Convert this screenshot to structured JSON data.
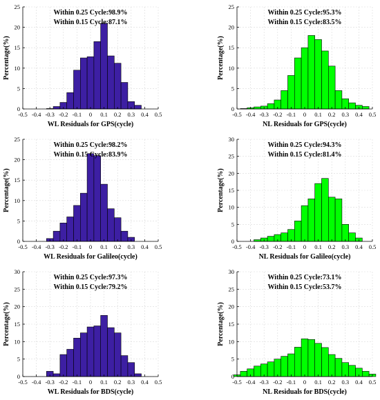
{
  "chart_data": [
    {
      "type": "bar",
      "x": [
        -0.4,
        -0.35,
        -0.3,
        -0.25,
        -0.2,
        -0.15,
        -0.1,
        -0.05,
        0.0,
        0.05,
        0.1,
        0.15,
        0.2,
        0.25,
        0.3,
        0.35,
        0.4
      ],
      "values": [
        0,
        0,
        0.1,
        0.6,
        1.6,
        4.0,
        9.5,
        12.5,
        12.8,
        16.5,
        21.0,
        13.0,
        11.2,
        6.5,
        1.8,
        0.9,
        0
      ],
      "color": "#3d1fa3",
      "xlabel": "WL Residuals for GPS(cycle)",
      "ylabel": "Percentage(%)",
      "annotations": [
        "Within 0.25 Cycle:98.9%",
        "Within 0.15 Cycle:87.1%"
      ],
      "xlim": [
        -0.5,
        0.5
      ],
      "ylim": [
        0,
        25
      ],
      "xticks": [
        "-0.5",
        "-0.4",
        "-0.3",
        "-0.2",
        "-0.1",
        "0",
        "0.1",
        "0.2",
        "0.3",
        "0.4",
        "0.5"
      ],
      "yticks": [
        "0",
        "5",
        "10",
        "15",
        "20",
        "25"
      ],
      "grid": true
    },
    {
      "type": "bar",
      "x": [
        -0.45,
        -0.4,
        -0.35,
        -0.3,
        -0.25,
        -0.2,
        -0.15,
        -0.1,
        -0.05,
        0.0,
        0.05,
        0.1,
        0.15,
        0.2,
        0.25,
        0.3,
        0.35,
        0.4,
        0.45
      ],
      "values": [
        0.1,
        0.3,
        0.5,
        0.7,
        1.3,
        2.2,
        4.5,
        8.2,
        12.5,
        15.0,
        18.0,
        17.0,
        14.2,
        10.5,
        4.5,
        2.5,
        1.5,
        0.9,
        0.6
      ],
      "color": "#00ff00",
      "xlabel": "NL Residuals for GPS(cycle)",
      "ylabel": "Percentage(%)",
      "annotations": [
        "Within 0.25 Cycle:95.3%",
        "Within 0.15 Cycle:83.5%"
      ],
      "xlim": [
        -0.5,
        0.5
      ],
      "ylim": [
        0,
        25
      ],
      "xticks": [
        "-0.5",
        "-0.4",
        "-0.3",
        "-0.2",
        "-0.1",
        "0",
        "0.1",
        "0.2",
        "0.3",
        "0.4",
        "0.5"
      ],
      "yticks": [
        "0",
        "5",
        "10",
        "15",
        "20",
        "25"
      ],
      "grid": true
    },
    {
      "type": "bar",
      "x": [
        -0.35,
        -0.3,
        -0.25,
        -0.2,
        -0.15,
        -0.1,
        -0.05,
        0.0,
        0.05,
        0.1,
        0.15,
        0.2,
        0.25,
        0.3,
        0.35
      ],
      "values": [
        0,
        0.7,
        2.5,
        4.5,
        6.0,
        8.8,
        11.8,
        21.5,
        21.0,
        14.0,
        8.0,
        5.8,
        2.5,
        1.0,
        0
      ],
      "color": "#3d1fa3",
      "xlabel": "WL Residuals for Galileo(cycle)",
      "ylabel": "Percentage(%)",
      "annotations": [
        "Within 0.25 Cycle:98.2%",
        "Within 0.15 Cycle:83.9%"
      ],
      "xlim": [
        -0.5,
        0.5
      ],
      "ylim": [
        0,
        25
      ],
      "xticks": [
        "-0.5",
        "-0.4",
        "-0.3",
        "-0.2",
        "-0.1",
        "0",
        "0.1",
        "0.2",
        "0.3",
        "0.4",
        "0.5"
      ],
      "yticks": [
        "0",
        "5",
        "10",
        "15",
        "20",
        "25"
      ],
      "grid": true
    },
    {
      "type": "bar",
      "x": [
        -0.4,
        -0.35,
        -0.3,
        -0.25,
        -0.2,
        -0.15,
        -0.1,
        -0.05,
        0.0,
        0.05,
        0.1,
        0.15,
        0.2,
        0.25,
        0.3,
        0.35,
        0.4
      ],
      "values": [
        0,
        0.5,
        1.0,
        1.5,
        2.0,
        2.5,
        3.5,
        6.0,
        10.5,
        12.5,
        17.0,
        18.5,
        13.0,
        12.5,
        5.0,
        2.5,
        1.0
      ],
      "color": "#00ff00",
      "xlabel": "NL Residuals for Galileo(cycle)",
      "ylabel": "Percentage(%)",
      "annotations": [
        "Within 0.25 Cycle:94.3%",
        "Within 0.15 Cycle:81.4%"
      ],
      "xlim": [
        -0.5,
        0.5
      ],
      "ylim": [
        0,
        30
      ],
      "xticks": [
        "-0.5",
        "-0.4",
        "-0.3",
        "-0.2",
        "-0.1",
        "0",
        "0.1",
        "0.2",
        "0.3",
        "0.4",
        "0.5"
      ],
      "yticks": [
        "0",
        "5",
        "10",
        "15",
        "20",
        "25",
        "30"
      ],
      "grid": true
    },
    {
      "type": "bar",
      "x": [
        -0.35,
        -0.3,
        -0.25,
        -0.2,
        -0.15,
        -0.1,
        -0.05,
        0.0,
        0.05,
        0.1,
        0.15,
        0.2,
        0.25,
        0.3,
        0.35,
        0.4
      ],
      "values": [
        0,
        1.5,
        0.8,
        6.3,
        7.8,
        11.0,
        12.5,
        14.2,
        14.5,
        17.5,
        14.0,
        12.5,
        6.0,
        4.0,
        0.8,
        0
      ],
      "color": "#3d1fa3",
      "xlabel": "WL Residuals for BDS(cycle)",
      "ylabel": "Percentage(%)",
      "annotations": [
        "Within 0.25 Cycle:97.3%",
        "Within 0.15 Cycle:79.2%"
      ],
      "xlim": [
        -0.5,
        0.5
      ],
      "ylim": [
        0,
        30
      ],
      "xticks": [
        "-0.5",
        "-0.4",
        "-0.3",
        "-0.2",
        "-0.1",
        "0",
        "0.1",
        "0.2",
        "0.3",
        "0.4",
        "0.5"
      ],
      "yticks": [
        "0",
        "5",
        "10",
        "15",
        "20",
        "25",
        "30"
      ],
      "grid": true
    },
    {
      "type": "bar",
      "x": [
        -0.5,
        -0.45,
        -0.4,
        -0.35,
        -0.3,
        -0.25,
        -0.2,
        -0.15,
        -0.1,
        -0.05,
        0.0,
        0.05,
        0.1,
        0.15,
        0.2,
        0.25,
        0.3,
        0.35,
        0.4,
        0.45,
        0.5
      ],
      "values": [
        0.5,
        1.5,
        2.2,
        3.0,
        3.6,
        4.2,
        5.0,
        5.8,
        6.5,
        8.4,
        10.8,
        10.6,
        9.5,
        8.3,
        6.3,
        5.2,
        4.0,
        3.2,
        2.4,
        1.5,
        0.7
      ],
      "color": "#00ff00",
      "xlabel": "NL Residuals for BDS(cycle)",
      "ylabel": "Percentage(%)",
      "annotations": [
        "Within 0.25 Cycle:73.1%",
        "Within 0.15 Cycle:53.7%"
      ],
      "xlim": [
        -0.5,
        0.5
      ],
      "ylim": [
        0,
        30
      ],
      "xticks": [
        "-0.5",
        "-0.4",
        "-0.3",
        "-0.2",
        "-0.1",
        "0",
        "0.1",
        "0.2",
        "0.3",
        "0.4",
        "0.5"
      ],
      "yticks": [
        "0",
        "5",
        "10",
        "15",
        "20",
        "25",
        "30"
      ],
      "grid": true
    }
  ]
}
